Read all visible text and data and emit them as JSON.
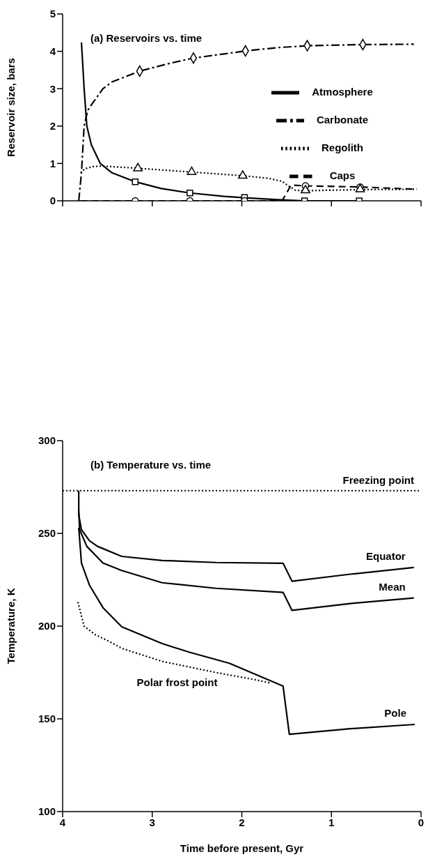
{
  "chart_data": [
    {
      "type": "line",
      "title": "(a) Reservoirs vs. time",
      "ylabel": "Reservoir size, bars",
      "xlim": [
        4,
        0
      ],
      "xticks": [
        4,
        3,
        2,
        1,
        0
      ],
      "ylim": [
        0,
        5
      ],
      "yticks": [
        0,
        1,
        2,
        3,
        4,
        5
      ],
      "tick_labels": "y",
      "legend": "right",
      "series": [
        {
          "name": "Atmosphere",
          "color": "#000000",
          "line_style": "solid",
          "x": [
            3.79,
            3.76,
            3.73,
            3.68,
            3.58,
            3.45,
            3.19,
            2.9,
            2.58,
            2.2,
            1.97,
            1.6,
            1.3,
            0.69
          ],
          "values": [
            4.24,
            3.0,
            2.0,
            1.5,
            1.0,
            0.75,
            0.51,
            0.33,
            0.21,
            0.12,
            0.08,
            0.03,
            0,
            0
          ]
        },
        {
          "name": "Carbonate",
          "color": "#000000",
          "line_style": "dashdot",
          "x": [
            3.82,
            3.79,
            3.76,
            3.72,
            3.67,
            3.55,
            3.45,
            3.14,
            2.8,
            2.54,
            2.2,
            1.96,
            1.6,
            1.27,
            0.65,
            0.08
          ],
          "values": [
            0,
            0.75,
            2.0,
            2.42,
            2.6,
            3.0,
            3.18,
            3.47,
            3.68,
            3.82,
            3.93,
            4.01,
            4.1,
            4.15,
            4.18,
            4.19
          ]
        },
        {
          "name": "Regolith",
          "color": "#000000",
          "line_style": "dotted",
          "x": [
            3.8,
            3.75,
            3.65,
            3.55,
            3.16,
            2.56,
            1.99,
            1.7,
            1.55,
            1.47,
            1.4,
            1.29,
            0.68,
            0.05
          ],
          "values": [
            0.75,
            0.86,
            0.92,
            0.93,
            0.87,
            0.77,
            0.67,
            0.6,
            0.52,
            0.38,
            0.28,
            0.27,
            0.3,
            0.31
          ]
        },
        {
          "name": "Caps",
          "color": "#000000",
          "line_style": "dashed",
          "x": [
            3.8,
            1.55,
            1.45,
            1.29,
            0.68,
            0.05
          ],
          "values": [
            0,
            0,
            0.42,
            0.4,
            0.37,
            0.31
          ]
        },
        {
          "type": "scatter",
          "color": "#ffffff",
          "marker": "square",
          "x": [
            3.19,
            2.58,
            1.97,
            1.3,
            0.69
          ],
          "values": [
            0.51,
            0.21,
            0.09,
            0,
            0
          ]
        },
        {
          "type": "scatter",
          "color": "#ffffff",
          "marker": "diamond",
          "x": [
            3.14,
            2.54,
            1.96,
            1.27,
            0.65
          ],
          "values": [
            3.47,
            3.82,
            4.01,
            4.15,
            4.18
          ]
        },
        {
          "type": "scatter",
          "color": "#ffffff",
          "marker": "circle",
          "x": [
            3.19,
            2.58,
            1.97,
            1.29,
            0.68
          ],
          "values": [
            0,
            0,
            0,
            0.4,
            0.37
          ]
        },
        {
          "type": "scatter",
          "color": "#ffffff",
          "marker": "triangle",
          "x": [
            3.16,
            2.56,
            1.99,
            1.29,
            0.68
          ],
          "values": [
            0.87,
            0.77,
            0.67,
            0.28,
            0.31
          ]
        }
      ]
    },
    {
      "type": "line",
      "title": "(b) Temperature vs. time",
      "xlabel": "Time before present, Gyr",
      "ylabel": "Temperature, K",
      "xlim": [
        4,
        0
      ],
      "xticks": [
        4,
        3,
        2,
        1,
        0
      ],
      "ylim": [
        100,
        300
      ],
      "yticks": [
        100,
        150,
        200,
        250,
        300
      ],
      "ref_lines": [
        {
          "axis": "y",
          "value": 273,
          "label": "Freezing point",
          "color": "#000000",
          "line_style": "dotted"
        }
      ],
      "series": [
        {
          "name": "Equator",
          "color": "#000000",
          "line_style": "solid",
          "x": [
            3.82,
            3.82,
            3.79,
            3.7,
            3.61,
            3.34,
            2.89,
            2.29,
            1.54,
            1.44,
            0.79,
            0.08
          ],
          "values": [
            273,
            260,
            252,
            246,
            243,
            237.6,
            235.4,
            234.3,
            233.9,
            224.2,
            228,
            231.6
          ]
        },
        {
          "name": "Mean",
          "color": "#000000",
          "line_style": "solid",
          "x": [
            3.82,
            3.81,
            3.73,
            3.55,
            3.34,
            2.89,
            2.29,
            1.54,
            1.44,
            0.79,
            0.08
          ],
          "values": [
            262,
            252,
            243,
            234,
            230,
            223.4,
            220.4,
            218.2,
            208.5,
            212.2,
            215.2
          ]
        },
        {
          "name": "Pole",
          "color": "#000000",
          "line_style": "solid",
          "x": [
            3.82,
            3.79,
            3.7,
            3.55,
            3.34,
            2.89,
            2.59,
            2.14,
            1.54,
            1.47,
            0.79,
            0.07
          ],
          "values": [
            253,
            234,
            222,
            210,
            199.6,
            190.6,
            186,
            180,
            167.7,
            141.7,
            144.7,
            147
          ]
        },
        {
          "name": "Polar frost point",
          "color": "#000000",
          "line_style": "dotted",
          "x": [
            3.83,
            3.76,
            3.64,
            3.49,
            3.34,
            2.89,
            2.29,
            1.84,
            1.69
          ],
          "values": [
            213,
            199.9,
            195.5,
            192,
            188,
            181,
            175,
            171,
            169.4
          ]
        }
      ]
    }
  ]
}
